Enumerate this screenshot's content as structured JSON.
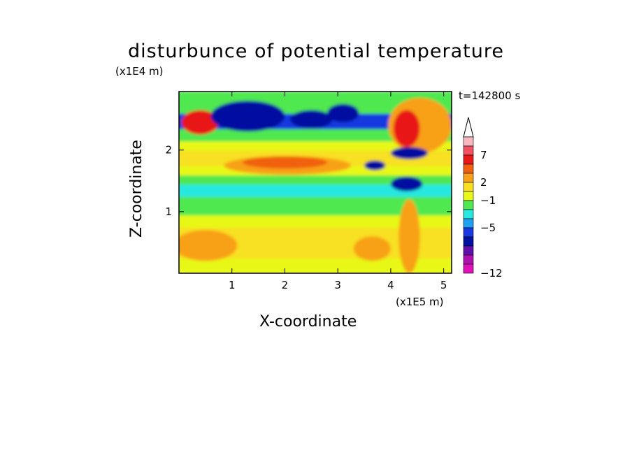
{
  "chart_data": {
    "type": "heatmap",
    "title": "disturbunce of potential temperature",
    "xlabel": "X-coordinate",
    "ylabel": "Z-coordinate",
    "x_scale_label": "(x1E5 m)",
    "y_scale_label": "(x1E4 m)",
    "time_label": "t=142800 s",
    "xlim": [
      0,
      5.15
    ],
    "ylim": [
      0,
      2.95
    ],
    "x_ticks": [
      "1",
      "2",
      "3",
      "4",
      "5"
    ],
    "y_ticks": [
      "1",
      "2"
    ],
    "colorbar": {
      "levels_labeled": [
        "7",
        "2",
        "−1",
        "−5",
        "−12"
      ],
      "colors": [
        "#f8b8c0",
        "#f05060",
        "#e81818",
        "#f06010",
        "#f8a018",
        "#f8e020",
        "#e8f818",
        "#50e850",
        "#28e8e0",
        "#20a0f0",
        "#1838e0",
        "#0010a0",
        "#6010a8",
        "#b010b0",
        "#e010b8"
      ],
      "extend": "max"
    },
    "bands": [
      {
        "z0": 0.0,
        "z1": 0.25,
        "level": 6
      },
      {
        "z0": 0.25,
        "z1": 0.75,
        "level": 5
      },
      {
        "z0": 0.75,
        "z1": 0.95,
        "level": 6
      },
      {
        "z0": 0.95,
        "z1": 1.25,
        "level": 7
      },
      {
        "z0": 1.25,
        "z1": 1.45,
        "level": 8
      },
      {
        "z0": 1.45,
        "z1": 1.6,
        "level": 7
      },
      {
        "z0": 1.6,
        "z1": 1.75,
        "level": 6
      },
      {
        "z0": 1.75,
        "z1": 2.0,
        "level": 5
      },
      {
        "z0": 2.0,
        "z1": 2.15,
        "level": 6
      },
      {
        "z0": 2.15,
        "z1": 2.35,
        "level": 7
      },
      {
        "z0": 2.35,
        "z1": 2.6,
        "level": 10
      },
      {
        "z0": 2.6,
        "z1": 2.95,
        "level": 7
      }
    ],
    "features": [
      {
        "x": 0.4,
        "z": 2.45,
        "rx": 0.35,
        "rz": 0.2,
        "level": 2
      },
      {
        "x": 0.5,
        "z": 0.45,
        "rx": 0.6,
        "rz": 0.25,
        "level": 4
      },
      {
        "x": 2.05,
        "z": 1.75,
        "rx": 1.2,
        "rz": 0.15,
        "level": 4
      },
      {
        "x": 2.0,
        "z": 1.8,
        "rx": 0.8,
        "rz": 0.1,
        "level": 3
      },
      {
        "x": 1.3,
        "z": 2.55,
        "rx": 0.7,
        "rz": 0.25,
        "level": 11
      },
      {
        "x": 2.5,
        "z": 2.5,
        "rx": 0.4,
        "rz": 0.15,
        "level": 11
      },
      {
        "x": 3.1,
        "z": 2.6,
        "rx": 0.3,
        "rz": 0.15,
        "level": 11
      },
      {
        "x": 3.65,
        "z": 0.4,
        "rx": 0.35,
        "rz": 0.2,
        "level": 4
      },
      {
        "x": 4.55,
        "z": 2.4,
        "rx": 0.6,
        "rz": 0.45,
        "level": 4
      },
      {
        "x": 4.3,
        "z": 2.35,
        "rx": 0.25,
        "rz": 0.3,
        "level": 2
      },
      {
        "x": 4.35,
        "z": 1.95,
        "rx": 0.35,
        "rz": 0.1,
        "level": 11
      },
      {
        "x": 4.3,
        "z": 1.45,
        "rx": 0.3,
        "rz": 0.12,
        "level": 11
      },
      {
        "x": 3.7,
        "z": 1.75,
        "rx": 0.2,
        "rz": 0.08,
        "level": 11
      },
      {
        "x": 4.35,
        "z": 0.6,
        "rx": 0.2,
        "rz": 0.6,
        "level": 4
      }
    ]
  }
}
